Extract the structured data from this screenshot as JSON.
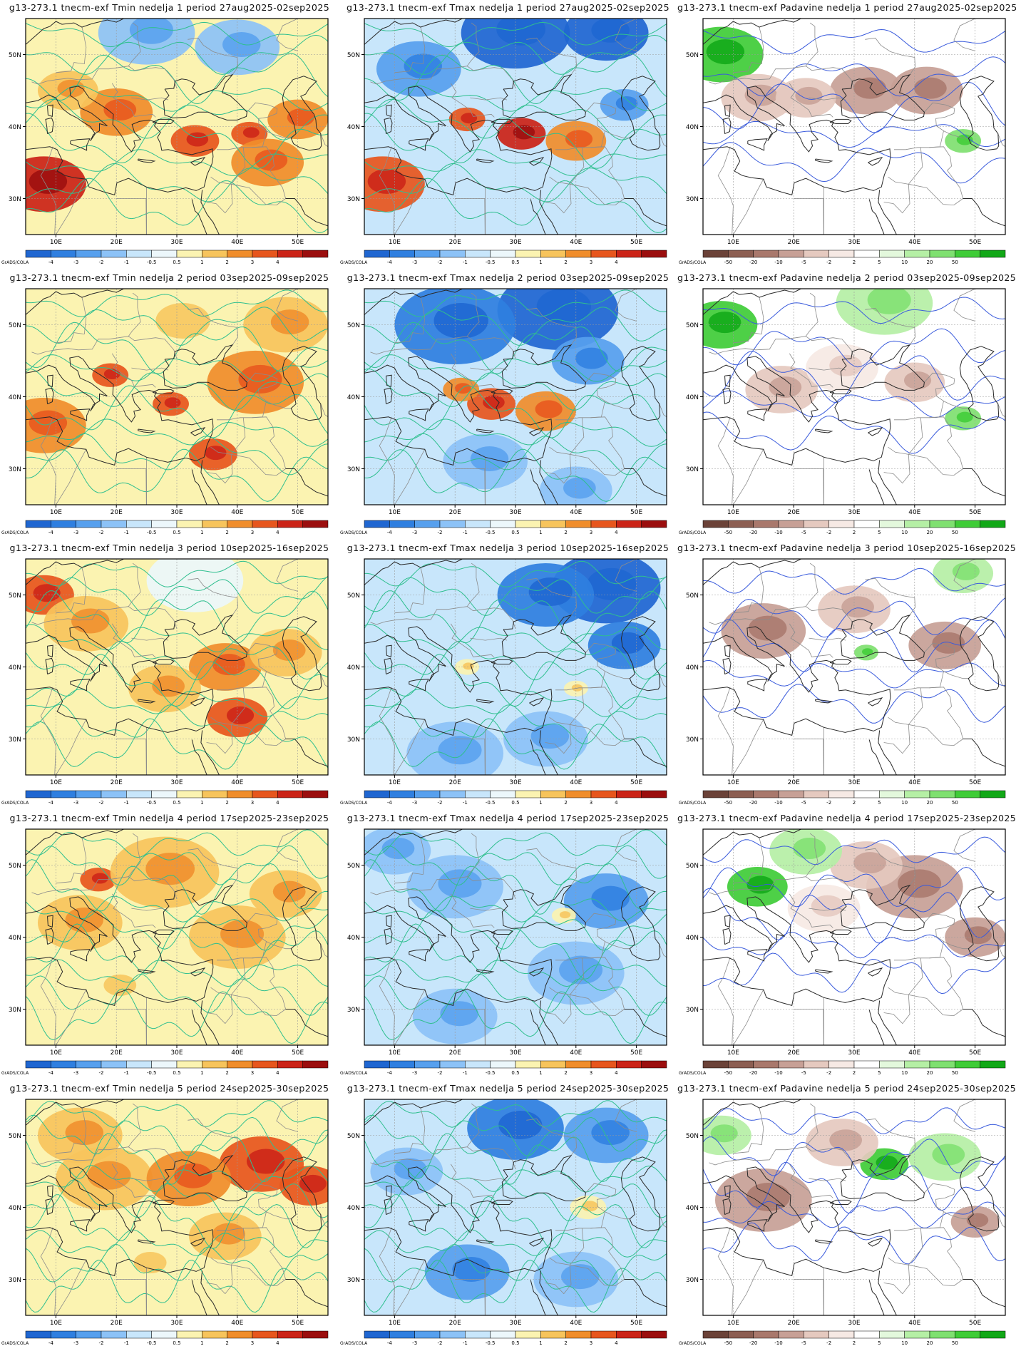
{
  "lon_ticks": [
    "10E",
    "20E",
    "30E",
    "40E",
    "50E"
  ],
  "lat_ticks": [
    "30N",
    "40N",
    "50N"
  ],
  "credit": "GrADS/COLA",
  "colorbars": {
    "temperature": {
      "labels": [
        "-4",
        "-3",
        "-2",
        "-1",
        "-0.5",
        "0.5",
        "1",
        "2",
        "3",
        "4"
      ],
      "colors": [
        "#1f66d1",
        "#2f7fe0",
        "#57a0ee",
        "#8cc2f7",
        "#c8e6fb",
        "#ecf7fb",
        "#fbf3b1",
        "#f7c45c",
        "#f08d2b",
        "#e7561d",
        "#cb2317",
        "#9b0e0e"
      ]
    },
    "precipitation": {
      "labels": [
        "-50",
        "-20",
        "-10",
        "-5",
        "-2",
        "2",
        "5",
        "10",
        "20",
        "50"
      ],
      "colors": [
        "#6b4238",
        "#8c5e52",
        "#a9786c",
        "#c7a096",
        "#e5c9bf",
        "#f6e9e4",
        "#ffffff",
        "#e3f8dc",
        "#b5efa5",
        "#7fe070",
        "#3fcc37",
        "#11a817"
      ]
    }
  },
  "rows": [
    {
      "tmin": "g13-273.1  tnecm-exf  Tmin  nedelja  1  period  27aug2025-02sep2025",
      "tmax": "g13-273.1  tnecm-exf  Tmax  nedelja  1  period  27aug2025-02sep2025",
      "prec": "g13-273.1  tnecm-exf  Padavine  nedelja  1  period  27aug2025-02sep2025"
    },
    {
      "tmin": "g13-273.1  tnecm-exf  Tmin  nedelja  2  period  03sep2025-09sep2025",
      "tmax": "g13-273.1  tnecm-exf  Tmax  nedelja  2  period  03sep2025-09sep2025",
      "prec": "g13-273.1  tnecm-exf  Padavine  nedelja  2  period  03sep2025-09sep2025"
    },
    {
      "tmin": "g13-273.1  tnecm-exf  Tmin  nedelja  3  period  10sep2025-16sep2025",
      "tmax": "g13-273.1  tnecm-exf  Tmax  nedelja  3  period  10sep2025-16sep2025",
      "prec": "g13-273.1  tnecm-exf  Padavine  nedelja  3  period  10sep2025-16sep2025"
    },
    {
      "tmin": "g13-273.1  tnecm-exf  Tmin  nedelja  4  period  17sep2025-23sep2025",
      "tmax": "g13-273.1  tnecm-exf  Tmax  nedelja  4  period  17sep2025-23sep2025",
      "prec": "g13-273.1  tnecm-exf  Padavine  nedelja  4  period  17sep2025-23sep2025"
    },
    {
      "tmin": "g13-273.1  tnecm-exf  Tmin  nedelja  5  period  24sep2025-30sep2025",
      "tmax": "g13-273.1  tnecm-exf  Tmax  nedelja  5  period  24sep2025-30sep2025",
      "prec": "g13-273.1  tnecm-exf  Padavine  nedelja  5  period  24sep2025-30sep2025"
    }
  ],
  "anomaly_fields": {
    "tmin": [
      [
        {
          "lon": 8,
          "lat": 32,
          "level": 10,
          "r": 7
        },
        {
          "lon": 33,
          "lat": 38,
          "level": 9,
          "r": 4
        },
        {
          "lon": 42,
          "lat": 39,
          "level": 9,
          "r": 3
        },
        {
          "lon": 20,
          "lat": 42,
          "level": 8,
          "r": 6
        },
        {
          "lon": 45,
          "lat": 35,
          "level": 8,
          "r": 6
        },
        {
          "lon": 25,
          "lat": 53,
          "level": 3,
          "r": 8
        },
        {
          "lon": 40,
          "lat": 51,
          "level": 3,
          "r": 7
        },
        {
          "lon": 12,
          "lat": 45,
          "level": 7,
          "r": 5
        },
        {
          "lon": 50,
          "lat": 41,
          "level": 8,
          "r": 5
        }
      ],
      [
        {
          "lon": 8,
          "lat": 36,
          "level": 8,
          "r": 7
        },
        {
          "lon": 36,
          "lat": 32,
          "level": 9,
          "r": 4
        },
        {
          "lon": 29,
          "lat": 39,
          "level": 9,
          "r": 3
        },
        {
          "lon": 19,
          "lat": 43,
          "level": 9,
          "r": 3
        },
        {
          "lon": 43,
          "lat": 42,
          "level": 8,
          "r": 8
        },
        {
          "lon": 30,
          "lat": 50,
          "level": 6,
          "r": 10
        },
        {
          "lon": 48,
          "lat": 50,
          "level": 7,
          "r": 7
        }
      ],
      [
        {
          "lon": 8,
          "lat": 50,
          "level": 9,
          "r": 5
        },
        {
          "lon": 40,
          "lat": 33,
          "level": 9,
          "r": 5
        },
        {
          "lon": 15,
          "lat": 46,
          "level": 7,
          "r": 7
        },
        {
          "lon": 38,
          "lat": 40,
          "level": 8,
          "r": 6
        },
        {
          "lon": 28,
          "lat": 37,
          "level": 7,
          "r": 6
        },
        {
          "lon": 48,
          "lat": 42,
          "level": 7,
          "r": 6
        },
        {
          "lon": 33,
          "lat": 52,
          "level": 5,
          "r": 8
        }
      ],
      [
        {
          "lon": 17,
          "lat": 48,
          "level": 9,
          "r": 3
        },
        {
          "lon": 28,
          "lat": 49,
          "level": 7,
          "r": 9
        },
        {
          "lon": 14,
          "lat": 42,
          "level": 7,
          "r": 7
        },
        {
          "lon": 40,
          "lat": 40,
          "level": 7,
          "r": 8
        },
        {
          "lon": 48,
          "lat": 46,
          "level": 7,
          "r": 6
        },
        {
          "lon": 20,
          "lat": 33,
          "level": 6,
          "r": 6
        }
      ],
      [
        {
          "lon": 44,
          "lat": 46,
          "level": 9,
          "r": 7
        },
        {
          "lon": 52,
          "lat": 43,
          "level": 9,
          "r": 5
        },
        {
          "lon": 18,
          "lat": 44,
          "level": 7,
          "r": 8
        },
        {
          "lon": 32,
          "lat": 44,
          "level": 8,
          "r": 7
        },
        {
          "lon": 14,
          "lat": 50,
          "level": 7,
          "r": 7
        },
        {
          "lon": 38,
          "lat": 36,
          "level": 7,
          "r": 6
        },
        {
          "lon": 25,
          "lat": 32,
          "level": 6,
          "r": 6
        }
      ]
    ],
    "tmax": [
      [
        {
          "lon": 8,
          "lat": 32,
          "level": 9,
          "r": 7
        },
        {
          "lon": 31,
          "lat": 39,
          "level": 10,
          "r": 4
        },
        {
          "lon": 22,
          "lat": 41,
          "level": 9,
          "r": 3
        },
        {
          "lon": 40,
          "lat": 38,
          "level": 8,
          "r": 5
        },
        {
          "lon": 30,
          "lat": 53,
          "level": 0,
          "r": 9
        },
        {
          "lon": 45,
          "lat": 53,
          "level": 0,
          "r": 7
        },
        {
          "lon": 14,
          "lat": 48,
          "level": 2,
          "r": 7
        },
        {
          "lon": 48,
          "lat": 43,
          "level": 2,
          "r": 4
        }
      ],
      [
        {
          "lon": 26,
          "lat": 39,
          "level": 9,
          "r": 4
        },
        {
          "lon": 21,
          "lat": 41,
          "level": 8,
          "r": 3
        },
        {
          "lon": 35,
          "lat": 38,
          "level": 8,
          "r": 5
        },
        {
          "lon": 37,
          "lat": 52,
          "level": 0,
          "r": 10
        },
        {
          "lon": 20,
          "lat": 50,
          "level": 1,
          "r": 10
        },
        {
          "lon": 42,
          "lat": 45,
          "level": 2,
          "r": 6
        },
        {
          "lon": 25,
          "lat": 31,
          "level": 3,
          "r": 7
        },
        {
          "lon": 40,
          "lat": 27,
          "level": 3,
          "r": 6
        }
      ],
      [
        {
          "lon": 45,
          "lat": 51,
          "level": 0,
          "r": 9
        },
        {
          "lon": 35,
          "lat": 50,
          "level": 1,
          "r": 8
        },
        {
          "lon": 48,
          "lat": 43,
          "level": 1,
          "r": 6
        },
        {
          "lon": 20,
          "lat": 28,
          "level": 3,
          "r": 8
        },
        {
          "lon": 35,
          "lat": 30,
          "level": 3,
          "r": 7
        },
        {
          "lon": 40,
          "lat": 37,
          "level": 6,
          "r": 2
        },
        {
          "lon": 22,
          "lat": 40,
          "level": 6,
          "r": 2
        }
      ],
      [
        {
          "lon": 20,
          "lat": 47,
          "level": 3,
          "r": 8
        },
        {
          "lon": 45,
          "lat": 45,
          "level": 2,
          "r": 7
        },
        {
          "lon": 40,
          "lat": 35,
          "level": 3,
          "r": 8
        },
        {
          "lon": 20,
          "lat": 29,
          "level": 3,
          "r": 7
        },
        {
          "lon": 38,
          "lat": 43,
          "level": 6,
          "r": 2
        },
        {
          "lon": 10,
          "lat": 52,
          "level": 3,
          "r": 6
        }
      ],
      [
        {
          "lon": 30,
          "lat": 51,
          "level": 1,
          "r": 8
        },
        {
          "lon": 45,
          "lat": 50,
          "level": 2,
          "r": 7
        },
        {
          "lon": 22,
          "lat": 31,
          "level": 2,
          "r": 7
        },
        {
          "lon": 40,
          "lat": 30,
          "level": 3,
          "r": 7
        },
        {
          "lon": 42,
          "lat": 40,
          "level": 6,
          "r": 3
        },
        {
          "lon": 12,
          "lat": 45,
          "level": 3,
          "r": 6
        }
      ]
    ],
    "prec": [
      [
        {
          "lon": 8,
          "lat": 50,
          "level": 10,
          "r": 7
        },
        {
          "lon": 14,
          "lat": 44,
          "level": 4,
          "r": 6
        },
        {
          "lon": 32,
          "lat": 45,
          "level": 3,
          "r": 6
        },
        {
          "lon": 42,
          "lat": 45,
          "level": 3,
          "r": 6
        },
        {
          "lon": 48,
          "lat": 38,
          "level": 9,
          "r": 3
        },
        {
          "lon": 22,
          "lat": 44,
          "level": 4,
          "r": 5
        }
      ],
      [
        {
          "lon": 8,
          "lat": 50,
          "level": 10,
          "r": 6
        },
        {
          "lon": 35,
          "lat": 53,
          "level": 8,
          "r": 8
        },
        {
          "lon": 18,
          "lat": 41,
          "level": 4,
          "r": 6
        },
        {
          "lon": 40,
          "lat": 42,
          "level": 4,
          "r": 5
        },
        {
          "lon": 28,
          "lat": 44,
          "level": 5,
          "r": 6
        },
        {
          "lon": 48,
          "lat": 37,
          "level": 9,
          "r": 3
        }
      ],
      [
        {
          "lon": 15,
          "lat": 45,
          "level": 3,
          "r": 7
        },
        {
          "lon": 45,
          "lat": 43,
          "level": 3,
          "r": 6
        },
        {
          "lon": 30,
          "lat": 48,
          "level": 4,
          "r": 6
        },
        {
          "lon": 48,
          "lat": 53,
          "level": 8,
          "r": 5
        },
        {
          "lon": 32,
          "lat": 42,
          "level": 9,
          "r": 2
        }
      ],
      [
        {
          "lon": 14,
          "lat": 47,
          "level": 10,
          "r": 5
        },
        {
          "lon": 40,
          "lat": 47,
          "level": 3,
          "r": 8
        },
        {
          "lon": 32,
          "lat": 50,
          "level": 4,
          "r": 6
        },
        {
          "lon": 22,
          "lat": 52,
          "level": 8,
          "r": 6
        },
        {
          "lon": 50,
          "lat": 40,
          "level": 3,
          "r": 5
        },
        {
          "lon": 25,
          "lat": 44,
          "level": 5,
          "r": 6
        }
      ],
      [
        {
          "lon": 15,
          "lat": 41,
          "level": 3,
          "r": 8
        },
        {
          "lon": 35,
          "lat": 46,
          "level": 10,
          "r": 4
        },
        {
          "lon": 8,
          "lat": 50,
          "level": 8,
          "r": 5
        },
        {
          "lon": 45,
          "lat": 47,
          "level": 8,
          "r": 6
        },
        {
          "lon": 50,
          "lat": 38,
          "level": 3,
          "r": 4
        },
        {
          "lon": 28,
          "lat": 49,
          "level": 4,
          "r": 6
        }
      ]
    ]
  }
}
